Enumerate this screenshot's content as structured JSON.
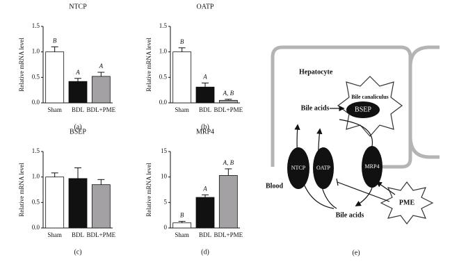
{
  "chart_data": [
    {
      "type": "bar",
      "title": "NTCP",
      "ylabel": "Relative mRNA level",
      "caption": "(a)",
      "categories": [
        "Sham",
        "BDL",
        "BDL+PME"
      ],
      "values": [
        1.0,
        0.42,
        0.52
      ],
      "errors": [
        0.1,
        0.06,
        0.08
      ],
      "annotations": [
        "B",
        "A",
        "A"
      ],
      "colors": [
        "#ffffff",
        "#111111",
        "#a3a1a3"
      ],
      "ylim": [
        0,
        1.5
      ],
      "yticks": [
        {
          "value": 0,
          "label": "0.0"
        },
        {
          "value": 0.5,
          "label": "0.5"
        },
        {
          "value": 1,
          "label": "1.0"
        },
        {
          "value": 1.5,
          "label": "1.5"
        }
      ]
    },
    {
      "type": "bar",
      "title": "OATP",
      "ylabel": "Relative mRNA level",
      "caption": "(b)",
      "categories": [
        "Sham",
        "BDL",
        "BDL+PME"
      ],
      "values": [
        1.0,
        0.31,
        0.05
      ],
      "errors": [
        0.08,
        0.08,
        0.02
      ],
      "annotations": [
        "B",
        "A",
        "A, B"
      ],
      "colors": [
        "#ffffff",
        "#111111",
        "#a3a1a3"
      ],
      "ylim": [
        0,
        1.5
      ],
      "yticks": [
        {
          "value": 0,
          "label": "0.0"
        },
        {
          "value": 0.5,
          "label": "0.5"
        },
        {
          "value": 1,
          "label": "1.0"
        },
        {
          "value": 1.5,
          "label": "1.5"
        }
      ]
    },
    {
      "type": "bar",
      "title": "BSEP",
      "ylabel": "Relative mRNA level",
      "caption": "(c)",
      "categories": [
        "Sham",
        "BDL",
        "BDL+PME"
      ],
      "values": [
        1.0,
        0.97,
        0.85
      ],
      "errors": [
        0.08,
        0.21,
        0.1
      ],
      "colors": [
        "#ffffff",
        "#111111",
        "#a3a1a3"
      ],
      "ylim": [
        0,
        1.5
      ],
      "yticks": [
        {
          "value": 0,
          "label": "0.0"
        },
        {
          "value": 0.5,
          "label": "0.5"
        },
        {
          "value": 1,
          "label": "1.0"
        },
        {
          "value": 1.5,
          "label": "1.5"
        }
      ]
    },
    {
      "type": "bar",
      "title": "MRP4",
      "ylabel": "Relative mRNA level",
      "caption": "(d)",
      "categories": [
        "Sham",
        "BDL",
        "BDL+PME"
      ],
      "values": [
        1.0,
        6.0,
        10.3
      ],
      "errors": [
        0.3,
        0.5,
        1.3
      ],
      "annotations": [
        "B",
        "A",
        "A, B"
      ],
      "colors": [
        "#ffffff",
        "#111111",
        "#a3a1a3"
      ],
      "ylim": [
        0,
        15
      ],
      "yticks": [
        0,
        5,
        10,
        15
      ]
    }
  ],
  "diagram": {
    "hepatocyte": "Hepatocyte",
    "canaliculus": "Bile canaliculus",
    "bile_top": "Bile acids",
    "bsep": "BSEP",
    "ntcp": "NTCP",
    "oatp": "OATP",
    "mrp4": "MRP4",
    "blood": "Blood",
    "bile_bottom": "Bile acids",
    "pme": "PME",
    "caption": "(e)"
  }
}
